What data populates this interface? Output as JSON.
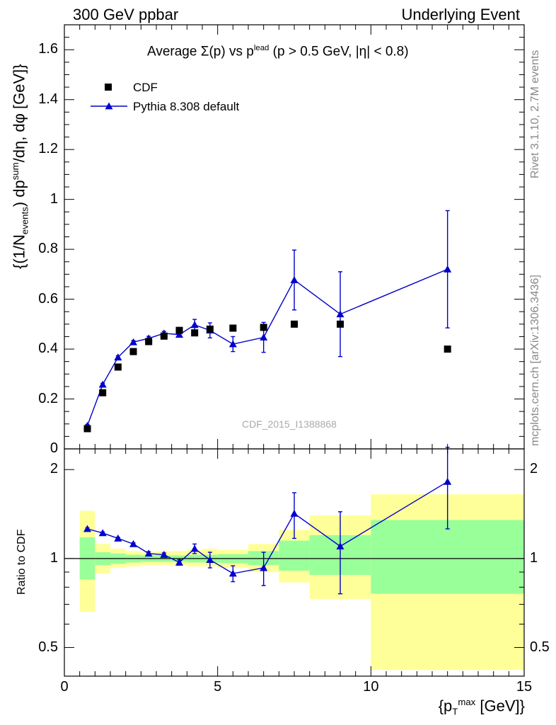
{
  "header": {
    "left": "300 GeV ppbar",
    "right": "Underlying Event"
  },
  "side": {
    "rivet": "Rivet 3.1.10,  2.7M events",
    "mcplots": "mcplots.cern.ch [arXiv:1306.3436]"
  },
  "watermark": "CDF_2015_I1388868",
  "chart_data": [
    {
      "type": "scatter",
      "title_prefix": "Average",
      "title_rest": "(p) vs p",
      "title_sup": "lead",
      "title_cut": "(p > 0.5 GeV, |η| < 0.8)",
      "ylabel_main": "{(1/N",
      "ylabel_sub": "events",
      "ylabel_rest": ") dp",
      "ylabel_sup": "sum",
      "ylabel_tail": "/dη, dφ [GeV]}",
      "xlim": [
        0,
        15
      ],
      "ylim": [
        0,
        1.7
      ],
      "yticks": [
        "0",
        "0.2",
        "0.4",
        "0.6",
        "0.8",
        "1",
        "1.2",
        "1.4",
        "1.6"
      ],
      "legend_position": "top-left",
      "series": [
        {
          "name": "CDF",
          "color": "#000000",
          "marker": "square",
          "x": [
            0.75,
            1.25,
            1.75,
            2.25,
            2.75,
            3.25,
            3.75,
            4.25,
            4.75,
            5.5,
            6.5,
            7.5,
            9.0,
            12.5
          ],
          "y": [
            0.081,
            0.225,
            0.328,
            0.39,
            0.43,
            0.452,
            0.475,
            0.465,
            0.48,
            0.484,
            0.487,
            0.5,
            0.5,
            0.4
          ]
        },
        {
          "name": "Pythia 8.308 default",
          "color": "#0000cc",
          "marker": "triangle",
          "x": [
            0.75,
            1.25,
            1.75,
            2.25,
            2.75,
            3.25,
            3.75,
            4.25,
            4.75,
            5.5,
            6.5,
            7.5,
            9.0,
            12.5
          ],
          "y": [
            0.093,
            0.258,
            0.367,
            0.428,
            0.443,
            0.463,
            0.458,
            0.497,
            0.475,
            0.42,
            0.447,
            0.677,
            0.54,
            0.72
          ],
          "yerr": [
            0.005,
            0.005,
            0.006,
            0.006,
            0.008,
            0.008,
            0.01,
            0.022,
            0.03,
            0.03,
            0.06,
            0.12,
            0.17,
            0.235
          ]
        }
      ]
    },
    {
      "type": "line",
      "ylabel": "Ratio to CDF",
      "xlabel": "{p",
      "xlabel_sub": "T",
      "xlabel_sup": "max",
      "xlabel_tail": " [GeV]}",
      "xlim": [
        0,
        15
      ],
      "ylim": [
        0.4,
        2.35
      ],
      "log_y": true,
      "xticks": [
        "0",
        "5",
        "10",
        "15"
      ],
      "yticks": [
        "0.5",
        "1",
        "2"
      ],
      "bands": [
        {
          "x0": 0.5,
          "x1": 1.0,
          "yellow": [
            0.66,
            1.45
          ],
          "green": [
            0.85,
            1.18
          ]
        },
        {
          "x0": 1.0,
          "x1": 1.5,
          "yellow": [
            0.89,
            1.12
          ],
          "green": [
            0.95,
            1.05
          ]
        },
        {
          "x0": 1.5,
          "x1": 2.0,
          "yellow": [
            0.93,
            1.08
          ],
          "green": [
            0.96,
            1.04
          ]
        },
        {
          "x0": 2.0,
          "x1": 2.5,
          "yellow": [
            0.94,
            1.06
          ],
          "green": [
            0.97,
            1.03
          ]
        },
        {
          "x0": 2.5,
          "x1": 3.0,
          "yellow": [
            0.95,
            1.05
          ],
          "green": [
            0.975,
            1.025
          ]
        },
        {
          "x0": 3.0,
          "x1": 3.5,
          "yellow": [
            0.95,
            1.06
          ],
          "green": [
            0.975,
            1.025
          ]
        },
        {
          "x0": 3.5,
          "x1": 4.0,
          "yellow": [
            0.95,
            1.06
          ],
          "green": [
            0.975,
            1.025
          ]
        },
        {
          "x0": 4.0,
          "x1": 4.5,
          "yellow": [
            0.94,
            1.07
          ],
          "green": [
            0.97,
            1.03
          ]
        },
        {
          "x0": 4.5,
          "x1": 5.0,
          "yellow": [
            0.94,
            1.08
          ],
          "green": [
            0.97,
            1.03
          ]
        },
        {
          "x0": 5.0,
          "x1": 6.0,
          "yellow": [
            0.93,
            1.07
          ],
          "green": [
            0.965,
            1.035
          ]
        },
        {
          "x0": 6.0,
          "x1": 7.0,
          "yellow": [
            0.9,
            1.12
          ],
          "green": [
            0.95,
            1.06
          ]
        },
        {
          "x0": 7.0,
          "x1": 8.0,
          "yellow": [
            0.83,
            1.25
          ],
          "green": [
            0.91,
            1.15
          ]
        },
        {
          "x0": 8.0,
          "x1": 10.0,
          "yellow": [
            0.73,
            1.4
          ],
          "green": [
            0.88,
            1.2
          ]
        },
        {
          "x0": 10.0,
          "x1": 15.0,
          "yellow": [
            0.42,
            1.65
          ],
          "green": [
            0.76,
            1.35
          ]
        }
      ],
      "series": [
        {
          "name": "Pythia 8.308 default",
          "color": "#0000cc",
          "x": [
            0.75,
            1.25,
            1.75,
            2.25,
            2.75,
            3.25,
            3.75,
            4.25,
            4.75,
            5.5,
            6.5,
            7.5,
            9.0,
            12.5
          ],
          "y": [
            1.26,
            1.22,
            1.17,
            1.12,
            1.04,
            1.03,
            0.97,
            1.08,
            0.99,
            0.89,
            0.93,
            1.42,
            1.1,
            1.82
          ],
          "yerr": [
            0.01,
            0.01,
            0.01,
            0.01,
            0.015,
            0.015,
            0.02,
            0.04,
            0.06,
            0.055,
            0.12,
            0.25,
            0.34,
            0.56
          ]
        }
      ]
    }
  ]
}
